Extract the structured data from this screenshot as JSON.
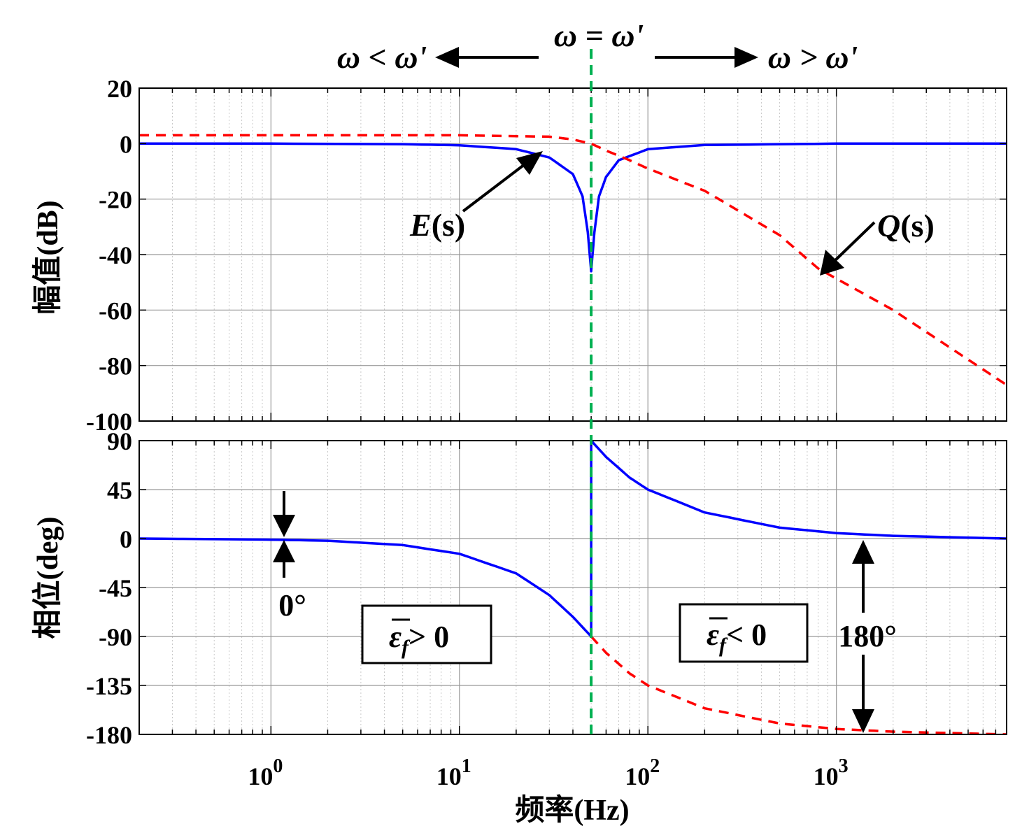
{
  "chart_data": [
    {
      "type": "line",
      "panel": "magnitude",
      "ylabel": "幅值(dB)",
      "ylim": [
        -100,
        20
      ],
      "yticks": [
        20,
        0,
        -20,
        -40,
        -60,
        -80,
        -100
      ],
      "xscale": "log",
      "xlim": [
        0.2,
        8000
      ],
      "grid": true,
      "series": [
        {
          "name": "E(s)",
          "color": "#0000ff",
          "style": "solid",
          "x": [
            0.2,
            1,
            5,
            10,
            20,
            30,
            40,
            45,
            48,
            50,
            52,
            55,
            60,
            70,
            100,
            200,
            1000,
            8000
          ],
          "y": [
            0,
            0,
            -0.2,
            -0.6,
            -2,
            -5,
            -11,
            -19,
            -32,
            -46,
            -32,
            -19,
            -12,
            -6,
            -2,
            -0.5,
            0,
            0
          ]
        },
        {
          "name": "Q(s)",
          "color": "#ff0000",
          "style": "dashed",
          "x": [
            0.2,
            1,
            10,
            30,
            40,
            50,
            60,
            80,
            100,
            200,
            500,
            800,
            2000,
            8000
          ],
          "y": [
            3,
            3,
            3,
            2.5,
            1.5,
            0,
            -2.5,
            -6,
            -9,
            -17,
            -33,
            -45,
            -60,
            -87
          ]
        }
      ],
      "annotations": [
        {
          "text": "E",
          "arg": "(s)",
          "points_to": {
            "x": 28,
            "y": -4
          }
        },
        {
          "text": "Q",
          "arg": "(s)",
          "points_to": {
            "x": 800,
            "y": -47
          }
        }
      ]
    },
    {
      "type": "line",
      "panel": "phase",
      "ylabel": "相位(deg)",
      "xlabel": "频率(Hz)",
      "ylim": [
        -180,
        90
      ],
      "yticks": [
        90,
        45,
        0,
        -45,
        -90,
        -135,
        -180
      ],
      "xscale": "log",
      "xlim": [
        0.2,
        8000
      ],
      "xticks": [
        1,
        10,
        100,
        1000
      ],
      "grid": true,
      "series": [
        {
          "name": "E(s) phase, below ω'",
          "color": "#0000ff",
          "style": "solid",
          "x": [
            0.2,
            1,
            2,
            5,
            10,
            20,
            30,
            40,
            50
          ],
          "y": [
            0,
            -1,
            -2,
            -6,
            -14,
            -32,
            -52,
            -72,
            -90
          ]
        },
        {
          "name": "E(s) phase, above ω'",
          "color": "#0000ff",
          "style": "solid",
          "x": [
            50,
            60,
            80,
            100,
            200,
            500,
            1000,
            2000,
            8000
          ],
          "y": [
            90,
            75,
            56,
            45,
            24,
            10,
            5,
            2.5,
            0
          ]
        },
        {
          "name": "Q(s) phase",
          "color": "#ff0000",
          "style": "dashed",
          "x": [
            50,
            60,
            80,
            100,
            200,
            500,
            1000,
            2000,
            8000
          ],
          "y": [
            -90,
            -105,
            -124,
            -135,
            -156,
            -170,
            -175,
            -177.5,
            -180
          ]
        }
      ]
    }
  ],
  "marker_line": {
    "x": 50,
    "color": "#00b050",
    "style": "dashed"
  },
  "top_annotations": {
    "center": "ω = ω'",
    "left": "ω < ω'",
    "right": "ω > ω'"
  },
  "phase_annotations": {
    "zero_label": "0°",
    "span_label": "180°",
    "box_left": {
      "symbol": "ε",
      "sub": "f",
      "relation": "> 0"
    },
    "box_right": {
      "symbol": "ε",
      "sub": "f",
      "relation": "< 0"
    }
  },
  "x_tick_labels": [
    {
      "base": "10",
      "exp": "0"
    },
    {
      "base": "10",
      "exp": "1"
    },
    {
      "base": "10",
      "exp": "2"
    },
    {
      "base": "10",
      "exp": "3"
    }
  ]
}
